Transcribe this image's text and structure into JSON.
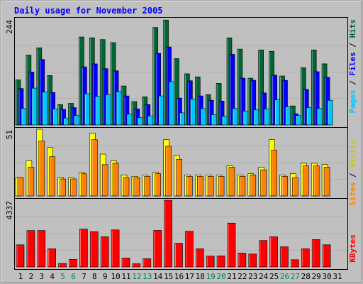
{
  "chart_data": {
    "type": "bar",
    "title": "Daily usage for November 2005",
    "categories": [
      "1",
      "2",
      "3",
      "4",
      "5",
      "6",
      "7",
      "8",
      "9",
      "10",
      "11",
      "12",
      "13",
      "14",
      "15",
      "16",
      "17",
      "18",
      "19",
      "20",
      "21",
      "22",
      "23",
      "24",
      "25",
      "26",
      "27",
      "28",
      "29",
      "30",
      "31"
    ],
    "weekend_days": [
      "5",
      "6",
      "12",
      "13",
      "19",
      "20",
      "26",
      "27"
    ],
    "panels": [
      {
        "name": "traffic",
        "ymax_label": "244",
        "ylim": [
          0,
          244
        ],
        "series": [
          {
            "name": "Hits",
            "color": "#006633",
            "values": [
              104,
              161,
              178,
              114,
              47,
              50,
              203,
              201,
              197,
              190,
              90,
              54,
              65,
              225,
              242,
              153,
              118,
              111,
              70,
              96,
              201,
              175,
              108,
              173,
              170,
              113,
              44,
              132,
              173,
              141,
              0
            ]
          },
          {
            "name": "Files",
            "color": "#0000ff",
            "values": [
              84,
              122,
              151,
              75,
              36,
              40,
              134,
              141,
              130,
              125,
              67,
              37,
              47,
              165,
              180,
              62,
              102,
              67,
              57,
              55,
              163,
              108,
              103,
              74,
              115,
              103,
              26,
              82,
              123,
              110,
              0
            ]
          },
          {
            "name": "Pages",
            "color": "#00c4ff",
            "values": [
              38,
              85,
              76,
              37,
              16,
              22,
              72,
              66,
              70,
              77,
              25,
              17,
              21,
              67,
              100,
              28,
              60,
              38,
              24,
              20,
              38,
              32,
              35,
              37,
              58,
              42,
              22,
              40,
              38,
              57,
              0
            ]
          }
        ]
      },
      {
        "name": "visitors",
        "ymax_label": "51",
        "ylim": [
          0,
          51
        ],
        "series": [
          {
            "name": "Visits",
            "color": "#ffff00",
            "values": [
              14,
              27,
              51,
              37,
              14,
              14,
              18,
              48,
              32,
              27,
              16,
              15,
              16,
              18,
              43,
              31,
              16,
              16,
              16,
              16,
              23,
              16,
              17,
              22,
              43,
              16,
              17,
              25,
              25,
              24,
              0
            ]
          },
          {
            "name": "Sites",
            "color": "#ff8000",
            "values": [
              14,
              22,
              42,
              30,
              13,
              13,
              17,
              43,
              24,
              25,
              14,
              14,
              15,
              17,
              38,
              28,
              15,
              15,
              15,
              15,
              22,
              15,
              16,
              20,
              35,
              15,
              14,
              23,
              23,
              22,
              0
            ]
          }
        ]
      },
      {
        "name": "kbytes",
        "ymax_label": "4337",
        "ylim": [
          0,
          4337
        ],
        "series": [
          {
            "name": "KBytes",
            "color": "#ff0000",
            "values": [
              1440,
              2370,
              2370,
              1180,
              230,
              490,
              2460,
              2290,
              1960,
              2410,
              580,
              210,
              540,
              2380,
              4337,
              1540,
              2320,
              1180,
              710,
              720,
              2850,
              900,
              840,
              1720,
              1960,
              1310,
              470,
              1180,
              1780,
              1440,
              0
            ]
          }
        ]
      }
    ],
    "right_labels": {
      "pages": "Pages",
      "files": "Files",
      "hits": "Hits",
      "sites": "Sites",
      "visits": "Visits",
      "kbytes": "KBytes",
      "separator": " / "
    },
    "colors": {
      "background": "#c0c0c0",
      "plot_background": "#c0c0c0",
      "frame_dark": "#808080",
      "frame_light": "#ffffff",
      "title": "#0000ff",
      "weekday_label": "#000000",
      "weekend_label": "#00805c",
      "grid": "#b0b0b0",
      "bar_highlight": "#ffffff",
      "bar_shadow": "#000000"
    }
  }
}
